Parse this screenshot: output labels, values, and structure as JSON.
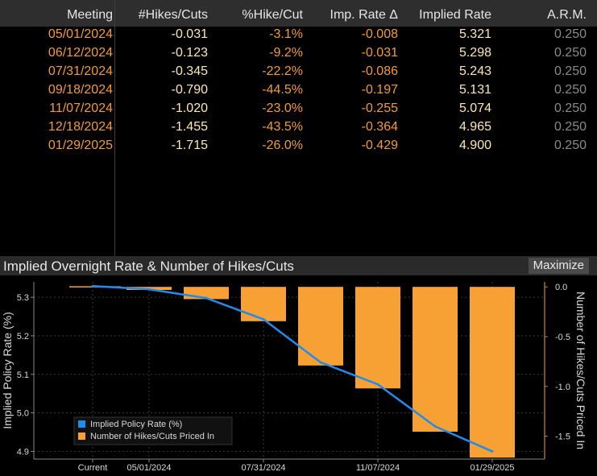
{
  "table": {
    "headers": [
      "Meeting",
      "#Hikes/Cuts",
      "%Hike/Cut",
      "Imp. Rate Δ",
      "Implied Rate",
      "A.R.M."
    ],
    "rows": [
      [
        "05/01/2024",
        "-0.031",
        "-3.1%",
        "-0.008",
        "5.321",
        "0.250"
      ],
      [
        "06/12/2024",
        "-0.123",
        "-9.2%",
        "-0.031",
        "5.298",
        "0.250"
      ],
      [
        "07/31/2024",
        "-0.345",
        "-22.2%",
        "-0.086",
        "5.243",
        "0.250"
      ],
      [
        "09/18/2024",
        "-0.790",
        "-44.5%",
        "-0.197",
        "5.131",
        "0.250"
      ],
      [
        "11/07/2024",
        "-1.020",
        "-23.0%",
        "-0.255",
        "5.074",
        "0.250"
      ],
      [
        "12/18/2024",
        "-1.455",
        "-43.5%",
        "-0.364",
        "4.965",
        "0.250"
      ],
      [
        "01/29/2025",
        "-1.715",
        "-26.0%",
        "-0.429",
        "4.900",
        "0.250"
      ]
    ]
  },
  "chart": {
    "title": "Implied Overnight Rate & Number of Hikes/Cuts",
    "maximize_label": "Maximize"
  },
  "colors": {
    "line": "#1f8cf0",
    "bar": "#f7a033",
    "date_text": "#f39c33",
    "value_text": "#ffe8b0"
  },
  "chart_data": {
    "type": "bar+line",
    "categories": [
      "Current",
      "05/01/2024",
      "06/12/2024",
      "07/31/2024",
      "09/18/2024",
      "11/07/2024",
      "12/18/2024",
      "01/29/2025"
    ],
    "x_tick_labels": [
      "Current",
      "05/01/2024",
      "07/31/2024",
      "11/07/2024",
      "01/29/2025"
    ],
    "series": [
      {
        "name": "Implied Policy Rate (%)",
        "type": "line",
        "axis": "left",
        "values": [
          5.329,
          5.321,
          5.298,
          5.243,
          5.131,
          5.074,
          4.965,
          4.9
        ]
      },
      {
        "name": "Number of Hikes/Cuts Priced In",
        "type": "bar",
        "axis": "right",
        "values": [
          0,
          -0.031,
          -0.123,
          -0.345,
          -0.79,
          -1.02,
          -1.455,
          -1.715
        ]
      }
    ],
    "ylabel_left": "Implied Policy Rate (%)",
    "ylabel_right": "Number of Hikes/Cuts Priced In",
    "ylim_left": [
      4.88,
      5.34
    ],
    "yticks_left": [
      "5.3",
      "5.2",
      "5.1",
      "5.0",
      "4.9"
    ],
    "ylim_right": [
      -1.73,
      0.05
    ],
    "yticks_right": [
      "0.0",
      "-0.5",
      "-1.0",
      "-1.5"
    ],
    "legend": [
      "Implied Policy Rate (%)",
      "Number of Hikes/Cuts Priced In"
    ],
    "legend_position": "bottom-left",
    "grid": true
  }
}
